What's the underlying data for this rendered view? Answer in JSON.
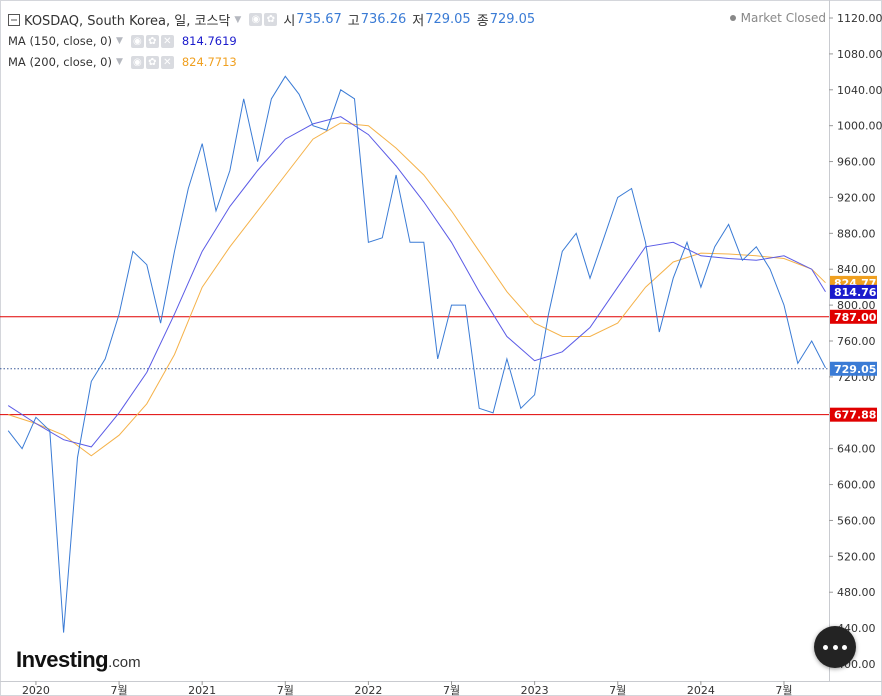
{
  "header": {
    "collapse_icon": "collapse-square-icon",
    "symbol": "KOSDAQ, South Korea, 일, 코스닥",
    "ohlc": [
      {
        "label": "시",
        "value": "735.67"
      },
      {
        "label": "고",
        "value": "736.26"
      },
      {
        "label": "저",
        "value": "729.05"
      },
      {
        "label": "종",
        "value": "729.05"
      }
    ],
    "market_status": "Market Closed"
  },
  "indicators": [
    {
      "label": "MA (150, close, 0)",
      "value": "814.7619",
      "color": "#1a1acc"
    },
    {
      "label": "MA (200, close, 0)",
      "value": "824.7713",
      "color": "#f0a020"
    }
  ],
  "brand": {
    "name": "Investing",
    "suffix": ".com"
  },
  "chart_data": {
    "type": "line",
    "price_color": "#3a7bd5",
    "ma150_color": "#5b5be6",
    "ma200_color": "#f5b24a",
    "ylim": [
      400,
      1120
    ],
    "y_ticks": [
      1120,
      1080,
      1040,
      1000,
      960,
      920,
      880,
      840,
      800,
      760,
      720,
      680,
      640,
      600,
      560,
      520,
      480,
      440,
      400
    ],
    "x_ticks": [
      {
        "label": "2020",
        "x": "2020-01"
      },
      {
        "label": "7월",
        "x": "2020-07"
      },
      {
        "label": "2021",
        "x": "2021-01"
      },
      {
        "label": "7월",
        "x": "2021-07"
      },
      {
        "label": "2022",
        "x": "2022-01"
      },
      {
        "label": "7월",
        "x": "2022-07"
      },
      {
        "label": "2023",
        "x": "2023-01"
      },
      {
        "label": "7월",
        "x": "2023-07"
      },
      {
        "label": "2024",
        "x": "2024-01"
      },
      {
        "label": "7월",
        "x": "2024-07"
      }
    ],
    "x_range": [
      "2019-11",
      "2024-10"
    ],
    "price": [
      [
        "2019-11",
        660
      ],
      [
        "2019-12",
        640
      ],
      [
        "2020-01",
        675
      ],
      [
        "2020-02",
        660
      ],
      [
        "2020-03",
        435
      ],
      [
        "2020-04",
        630
      ],
      [
        "2020-05",
        715
      ],
      [
        "2020-06",
        740
      ],
      [
        "2020-07",
        790
      ],
      [
        "2020-08",
        860
      ],
      [
        "2020-09",
        845
      ],
      [
        "2020-10",
        780
      ],
      [
        "2020-11",
        860
      ],
      [
        "2020-12",
        930
      ],
      [
        "2021-01",
        980
      ],
      [
        "2021-02",
        905
      ],
      [
        "2021-03",
        950
      ],
      [
        "2021-04",
        1030
      ],
      [
        "2021-05",
        960
      ],
      [
        "2021-06",
        1030
      ],
      [
        "2021-07",
        1055
      ],
      [
        "2021-08",
        1035
      ],
      [
        "2021-09",
        1000
      ],
      [
        "2021-10",
        995
      ],
      [
        "2021-11",
        1040
      ],
      [
        "2021-12",
        1030
      ],
      [
        "2022-01",
        870
      ],
      [
        "2022-02",
        875
      ],
      [
        "2022-03",
        945
      ],
      [
        "2022-04",
        870
      ],
      [
        "2022-05",
        870
      ],
      [
        "2022-06",
        740
      ],
      [
        "2022-07",
        800
      ],
      [
        "2022-08",
        800
      ],
      [
        "2022-09",
        685
      ],
      [
        "2022-10",
        680
      ],
      [
        "2022-11",
        740
      ],
      [
        "2022-12",
        685
      ],
      [
        "2023-01",
        700
      ],
      [
        "2023-02",
        790
      ],
      [
        "2023-03",
        860
      ],
      [
        "2023-04",
        880
      ],
      [
        "2023-05",
        830
      ],
      [
        "2023-06",
        875
      ],
      [
        "2023-07",
        920
      ],
      [
        "2023-08",
        930
      ],
      [
        "2023-09",
        870
      ],
      [
        "2023-10",
        770
      ],
      [
        "2023-11",
        830
      ],
      [
        "2023-12",
        870
      ],
      [
        "2024-01",
        820
      ],
      [
        "2024-02",
        865
      ],
      [
        "2024-03",
        890
      ],
      [
        "2024-04",
        850
      ],
      [
        "2024-05",
        865
      ],
      [
        "2024-06",
        840
      ],
      [
        "2024-07",
        800
      ],
      [
        "2024-08",
        735
      ],
      [
        "2024-09",
        760
      ],
      [
        "2024-10",
        730
      ]
    ],
    "ma150": [
      [
        "2019-11",
        688
      ],
      [
        "2020-01",
        668
      ],
      [
        "2020-03",
        650
      ],
      [
        "2020-05",
        642
      ],
      [
        "2020-07",
        680
      ],
      [
        "2020-09",
        725
      ],
      [
        "2020-11",
        790
      ],
      [
        "2021-01",
        860
      ],
      [
        "2021-03",
        910
      ],
      [
        "2021-05",
        950
      ],
      [
        "2021-07",
        985
      ],
      [
        "2021-09",
        1002
      ],
      [
        "2021-11",
        1010
      ],
      [
        "2022-01",
        990
      ],
      [
        "2022-03",
        955
      ],
      [
        "2022-05",
        915
      ],
      [
        "2022-07",
        870
      ],
      [
        "2022-09",
        815
      ],
      [
        "2022-11",
        765
      ],
      [
        "2023-01",
        738
      ],
      [
        "2023-03",
        748
      ],
      [
        "2023-05",
        775
      ],
      [
        "2023-07",
        820
      ],
      [
        "2023-09",
        865
      ],
      [
        "2023-11",
        870
      ],
      [
        "2024-01",
        855
      ],
      [
        "2024-03",
        852
      ],
      [
        "2024-05",
        850
      ],
      [
        "2024-07",
        855
      ],
      [
        "2024-09",
        840
      ],
      [
        "2024-10",
        815
      ]
    ],
    "ma200": [
      [
        "2019-11",
        678
      ],
      [
        "2020-01",
        668
      ],
      [
        "2020-03",
        655
      ],
      [
        "2020-05",
        632
      ],
      [
        "2020-07",
        655
      ],
      [
        "2020-09",
        690
      ],
      [
        "2020-11",
        745
      ],
      [
        "2021-01",
        820
      ],
      [
        "2021-03",
        865
      ],
      [
        "2021-05",
        905
      ],
      [
        "2021-07",
        945
      ],
      [
        "2021-09",
        985
      ],
      [
        "2021-11",
        1003
      ],
      [
        "2022-01",
        1000
      ],
      [
        "2022-03",
        975
      ],
      [
        "2022-05",
        945
      ],
      [
        "2022-07",
        905
      ],
      [
        "2022-09",
        860
      ],
      [
        "2022-11",
        815
      ],
      [
        "2023-01",
        780
      ],
      [
        "2023-03",
        765
      ],
      [
        "2023-05",
        765
      ],
      [
        "2023-07",
        780
      ],
      [
        "2023-09",
        820
      ],
      [
        "2023-11",
        848
      ],
      [
        "2024-01",
        858
      ],
      [
        "2024-03",
        857
      ],
      [
        "2024-05",
        855
      ],
      [
        "2024-07",
        852
      ],
      [
        "2024-09",
        840
      ],
      [
        "2024-10",
        825
      ]
    ],
    "horizontal_lines": [
      {
        "value": 787.0,
        "label": "787.00",
        "color": "#e00000",
        "style": "solid",
        "label_bg": "#e00000",
        "label_color": "#ffffff"
      },
      {
        "value": 677.88,
        "label": "677.88",
        "color": "#e00000",
        "style": "solid",
        "label_bg": "#e00000",
        "label_color": "#ffffff"
      },
      {
        "value": 729.05,
        "label": "729.05",
        "color": "#3a5a9a",
        "style": "dotted",
        "label_bg": "#3a7bd5",
        "label_color": "#ffffff"
      }
    ],
    "axis_tags": [
      {
        "value": 824.77,
        "label": "824.77",
        "bg": "#f0a020",
        "color": "#ffffff"
      },
      {
        "value": 814.76,
        "label": "814.76",
        "bg": "#1a1acc",
        "color": "#ffffff"
      }
    ]
  }
}
